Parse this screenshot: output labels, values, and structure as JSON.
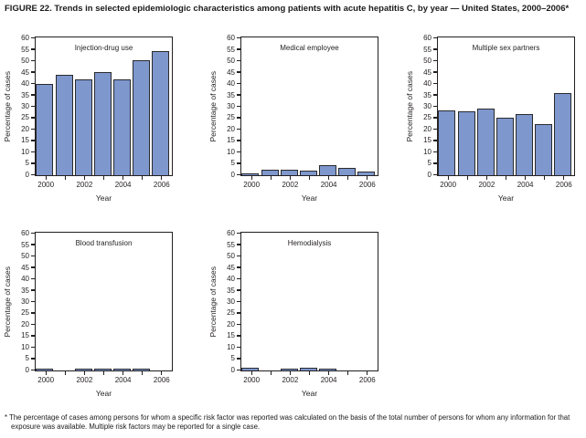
{
  "figure": {
    "title": "FIGURE 22. Trends in selected epidemiologic characteristics among patients with acute hepatitis C, by year — United States, 2000–2006*",
    "footnote": "* The percentage of cases among persons for whom a specific risk factor was reported was calculated on the basis of the total number of persons for whom any information for that exposure was available. Multiple risk factors may be reported for a single case."
  },
  "colors": {
    "bar_fill": "#7e97cd",
    "bar_border": "#2a2a2e",
    "axis": "#231f20",
    "text": "#231f20",
    "background": "#ffffff"
  },
  "chart_data": [
    {
      "type": "bar",
      "title": "Injection-drug use",
      "categories": [
        "2000",
        "2001",
        "2002",
        "2003",
        "2004",
        "2005",
        "2006"
      ],
      "values": [
        40,
        44,
        42,
        45.5,
        42,
        50.5,
        54.5
      ],
      "xlabel": "Year",
      "ylabel": "Percentage of cases",
      "ylim": [
        0,
        60
      ],
      "ytick_step": 5,
      "labeled_x_ticks": [
        "2000",
        "2002",
        "2004",
        "2006"
      ],
      "grid": false,
      "legend": "none"
    },
    {
      "type": "bar",
      "title": "Medical employee",
      "categories": [
        "2000",
        "2001",
        "2002",
        "2003",
        "2004",
        "2005",
        "2006"
      ],
      "values": [
        0.9,
        2.6,
        2.6,
        2.2,
        4.3,
        3.3,
        1.6
      ],
      "xlabel": "Year",
      "ylabel": "Percentage of cases",
      "ylim": [
        0,
        60
      ],
      "ytick_step": 5,
      "labeled_x_ticks": [
        "2000",
        "2002",
        "2004",
        "2006"
      ],
      "grid": false,
      "legend": "none"
    },
    {
      "type": "bar",
      "title": "Multiple sex partners",
      "categories": [
        "2000",
        "2001",
        "2002",
        "2003",
        "2004",
        "2005",
        "2006"
      ],
      "values": [
        28.5,
        28,
        29.5,
        25.5,
        27,
        22.5,
        36
      ],
      "xlabel": "Year",
      "ylabel": "Percentage of cases",
      "ylim": [
        0,
        60
      ],
      "ytick_step": 5,
      "labeled_x_ticks": [
        "2000",
        "2002",
        "2004",
        "2006"
      ],
      "grid": false,
      "legend": "none"
    },
    {
      "type": "bar",
      "title": "Blood transfusion",
      "categories": [
        "2000",
        "2001",
        "2002",
        "2003",
        "2004",
        "2005",
        "2006"
      ],
      "values": [
        0.7,
        0,
        0.5,
        0.7,
        0.7,
        0.7,
        0
      ],
      "xlabel": "Year",
      "ylabel": "Percentage of cases",
      "ylim": [
        0,
        60
      ],
      "ytick_step": 5,
      "labeled_x_ticks": [
        "2000",
        "2002",
        "2004",
        "2006"
      ],
      "grid": false,
      "legend": "none"
    },
    {
      "type": "bar",
      "title": "Hemodialysis",
      "categories": [
        "2000",
        "2001",
        "2002",
        "2003",
        "2004",
        "2005",
        "2006"
      ],
      "values": [
        1.3,
        0,
        0.6,
        1.3,
        0.8,
        0,
        0
      ],
      "xlabel": "Year",
      "ylabel": "Percentage of cases",
      "ylim": [
        0,
        60
      ],
      "ytick_step": 5,
      "labeled_x_ticks": [
        "2000",
        "2002",
        "2004",
        "2006"
      ],
      "grid": false,
      "legend": "none"
    }
  ]
}
